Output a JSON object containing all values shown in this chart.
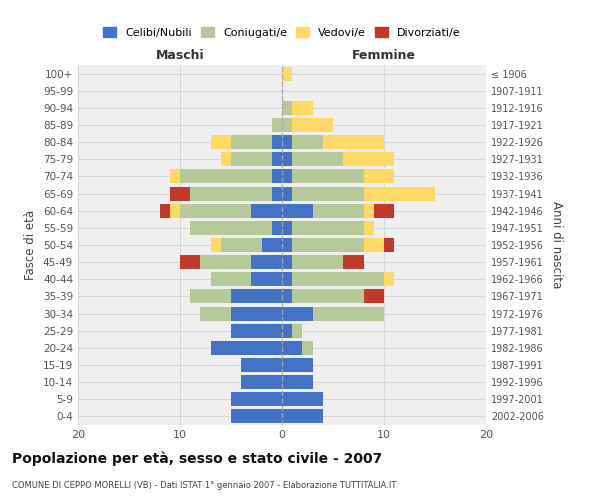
{
  "age_groups": [
    "0-4",
    "5-9",
    "10-14",
    "15-19",
    "20-24",
    "25-29",
    "30-34",
    "35-39",
    "40-44",
    "45-49",
    "50-54",
    "55-59",
    "60-64",
    "65-69",
    "70-74",
    "75-79",
    "80-84",
    "85-89",
    "90-94",
    "95-99",
    "100+"
  ],
  "birth_years": [
    "2002-2006",
    "1997-2001",
    "1992-1996",
    "1987-1991",
    "1982-1986",
    "1977-1981",
    "1972-1976",
    "1967-1971",
    "1962-1966",
    "1957-1961",
    "1952-1956",
    "1947-1951",
    "1942-1946",
    "1937-1941",
    "1932-1936",
    "1927-1931",
    "1922-1926",
    "1917-1921",
    "1912-1916",
    "1907-1911",
    "≤ 1906"
  ],
  "maschi": {
    "celibi": [
      5,
      5,
      4,
      4,
      7,
      5,
      5,
      5,
      3,
      3,
      2,
      1,
      3,
      1,
      1,
      1,
      1,
      0,
      0,
      0,
      0
    ],
    "coniugati": [
      0,
      0,
      0,
      0,
      0,
      0,
      3,
      4,
      4,
      5,
      4,
      8,
      7,
      8,
      9,
      4,
      4,
      1,
      0,
      0,
      0
    ],
    "vedovi": [
      0,
      0,
      0,
      0,
      0,
      0,
      0,
      0,
      0,
      0,
      1,
      0,
      1,
      0,
      1,
      1,
      2,
      0,
      0,
      0,
      0
    ],
    "divorziati": [
      0,
      0,
      0,
      0,
      0,
      0,
      0,
      0,
      0,
      2,
      0,
      0,
      1,
      2,
      0,
      0,
      0,
      0,
      0,
      0,
      0
    ]
  },
  "femmine": {
    "nubili": [
      4,
      4,
      3,
      3,
      2,
      1,
      3,
      1,
      1,
      1,
      1,
      1,
      3,
      1,
      1,
      1,
      1,
      0,
      0,
      0,
      0
    ],
    "coniugate": [
      0,
      0,
      0,
      0,
      1,
      1,
      7,
      7,
      9,
      5,
      7,
      7,
      5,
      7,
      7,
      5,
      3,
      1,
      1,
      0,
      0
    ],
    "vedove": [
      0,
      0,
      0,
      0,
      0,
      0,
      0,
      0,
      1,
      0,
      2,
      1,
      1,
      7,
      3,
      5,
      6,
      4,
      2,
      0,
      1
    ],
    "divorziate": [
      0,
      0,
      0,
      0,
      0,
      0,
      0,
      2,
      0,
      2,
      1,
      0,
      2,
      0,
      0,
      0,
      0,
      0,
      0,
      0,
      0
    ]
  },
  "colors": {
    "celibi_nubili": "#4472C4",
    "coniugati": "#b5c99a",
    "vedovi": "#ffd966",
    "divorziati": "#c0392b"
  },
  "title": "Popolazione per età, sesso e stato civile - 2007",
  "subtitle": "COMUNE DI CEPPO MORELLI (VB) - Dati ISTAT 1° gennaio 2007 - Elaborazione TUTTITALIA.IT",
  "xlabel_left": "Maschi",
  "xlabel_right": "Femmine",
  "ylabel_left": "Fasce di età",
  "ylabel_right": "Anni di nascita",
  "xlim": 20,
  "legend_labels": [
    "Celibi/Nubili",
    "Coniugati/e",
    "Vedovi/e",
    "Divorziati/e"
  ],
  "bg_color": "#ffffff",
  "plot_bg": "#efefef",
  "grid_color": "#cccccc"
}
